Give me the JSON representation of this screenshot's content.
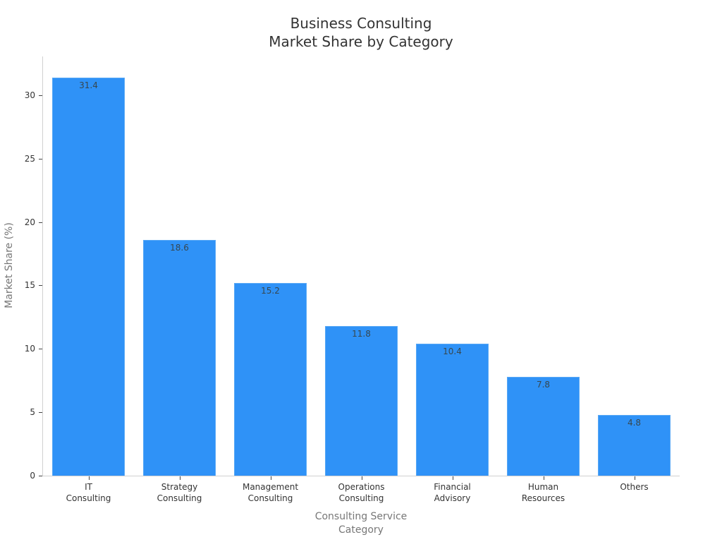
{
  "chart": {
    "title_line1": "Business Consulting",
    "title_line2": "Market Share by Category",
    "xlabel_line1": "Consulting Service",
    "xlabel_line2": "Category",
    "ylabel": "Market Share (%)",
    "bar_color": "#2f92f7",
    "yticks": [
      "0",
      "5",
      "10",
      "15",
      "20",
      "25",
      "30"
    ],
    "bars": [
      {
        "label": "IT\nConsulting",
        "value": 31.4,
        "value_label": "31.4"
      },
      {
        "label": "Strategy\nConsulting",
        "value": 18.6,
        "value_label": "18.6"
      },
      {
        "label": "Management\nConsulting",
        "value": 15.2,
        "value_label": "15.2"
      },
      {
        "label": "Operations\nConsulting",
        "value": 11.8,
        "value_label": "11.8"
      },
      {
        "label": "Financial\nAdvisory",
        "value": 10.4,
        "value_label": "10.4"
      },
      {
        "label": "Human\nResources",
        "value": 7.8,
        "value_label": "7.8"
      },
      {
        "label": "Others",
        "value": 4.8,
        "value_label": "4.8"
      }
    ]
  },
  "chart_data": {
    "type": "bar",
    "title": "Business Consulting Market Share by Category",
    "categories": [
      "IT Consulting",
      "Strategy Consulting",
      "Management Consulting",
      "Operations Consulting",
      "Financial Advisory",
      "Human Resources",
      "Others"
    ],
    "values": [
      31.4,
      18.6,
      15.2,
      11.8,
      10.4,
      7.8,
      4.8
    ],
    "xlabel": "Consulting Service Category",
    "ylabel": "Market Share (%)",
    "ylim": [
      0,
      33
    ],
    "yticks": [
      0,
      5,
      10,
      15,
      20,
      25,
      30
    ],
    "grid": false,
    "legend": null,
    "data_labels": true
  }
}
